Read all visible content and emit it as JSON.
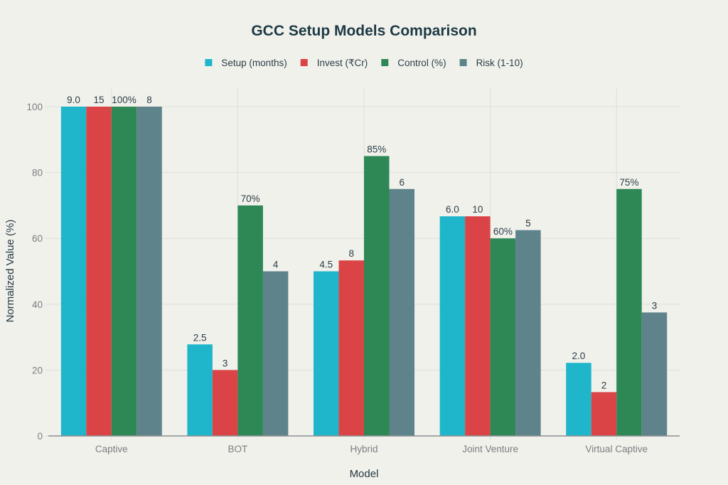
{
  "chart_data": {
    "type": "bar",
    "title": "GCC Setup Models Comparison",
    "xlabel": "Model",
    "ylabel": "Normalized Value (%)",
    "ylim": [
      0,
      100
    ],
    "yticks": [
      0,
      20,
      40,
      60,
      80,
      100
    ],
    "grid": true,
    "legend_position": "top-center",
    "categories": [
      "Captive",
      "BOT",
      "Hybrid",
      "Joint Venture",
      "Virtual Captive"
    ],
    "series": [
      {
        "name": "Setup (months)",
        "color": "#1fb6cc",
        "values": [
          100,
          27.8,
          50,
          66.7,
          22.2
        ],
        "labels": [
          "9.0",
          "2.5",
          "4.5",
          "6.0",
          "2.0"
        ]
      },
      {
        "name": "Invest (₹Cr)",
        "color": "#db4446",
        "values": [
          100,
          20,
          53.3,
          66.7,
          13.3
        ],
        "labels": [
          "15",
          "3",
          "8",
          "10",
          "2"
        ]
      },
      {
        "name": "Control (%)",
        "color": "#2e8856",
        "values": [
          100,
          70,
          85,
          60,
          75
        ],
        "labels": [
          "100%",
          "70%",
          "85%",
          "60%",
          "75%"
        ]
      },
      {
        "name": "Risk (1-10)",
        "color": "#5e838a",
        "values": [
          100,
          50,
          75,
          62.5,
          37.5
        ],
        "labels": [
          "8",
          "4",
          "6",
          "5",
          "3"
        ]
      }
    ]
  }
}
